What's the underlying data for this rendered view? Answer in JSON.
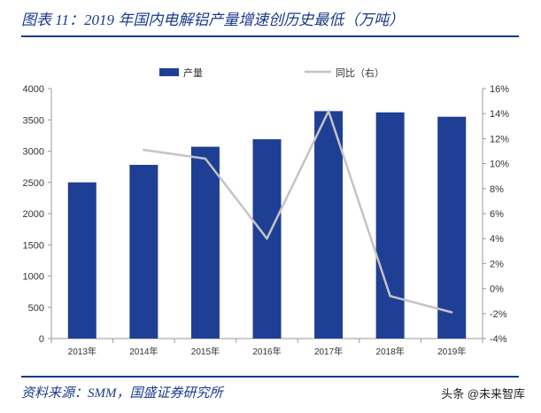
{
  "header": {
    "figure_title": "图表 11：2019 年国内电解铝产量增速创历史最低（万吨）"
  },
  "footer": {
    "source": "资料来源：SMM，国盛证券研究所",
    "watermark": "头条 @未来智库"
  },
  "colors": {
    "bar": "#1f3f94",
    "line": "#c4c4c4",
    "title": "#1a3a8c",
    "axis": "#999999"
  },
  "chart_data": {
    "type": "bar",
    "categories": [
      "2013年",
      "2014年",
      "2015年",
      "2016年",
      "2017年",
      "2018年",
      "2019年"
    ],
    "series": [
      {
        "name": "产量",
        "type": "bar",
        "axis": "left",
        "values": [
          2500,
          2780,
          3070,
          3190,
          3640,
          3620,
          3550
        ]
      },
      {
        "name": "同比（右）",
        "type": "line",
        "axis": "right",
        "values": [
          null,
          11.1,
          10.4,
          4.0,
          14.2,
          -0.6,
          -1.9
        ]
      }
    ],
    "y_left": {
      "min": 0,
      "max": 4000,
      "step": 500,
      "ticks": [
        "0",
        "500",
        "1000",
        "1500",
        "2000",
        "2500",
        "3000",
        "3500",
        "4000"
      ]
    },
    "y_right": {
      "min": -4,
      "max": 16,
      "step": 2,
      "ticks": [
        "-4%",
        "-2%",
        "0%",
        "2%",
        "4%",
        "6%",
        "8%",
        "10%",
        "12%",
        "14%",
        "16%"
      ]
    },
    "grid": false,
    "legend": "top-center"
  }
}
